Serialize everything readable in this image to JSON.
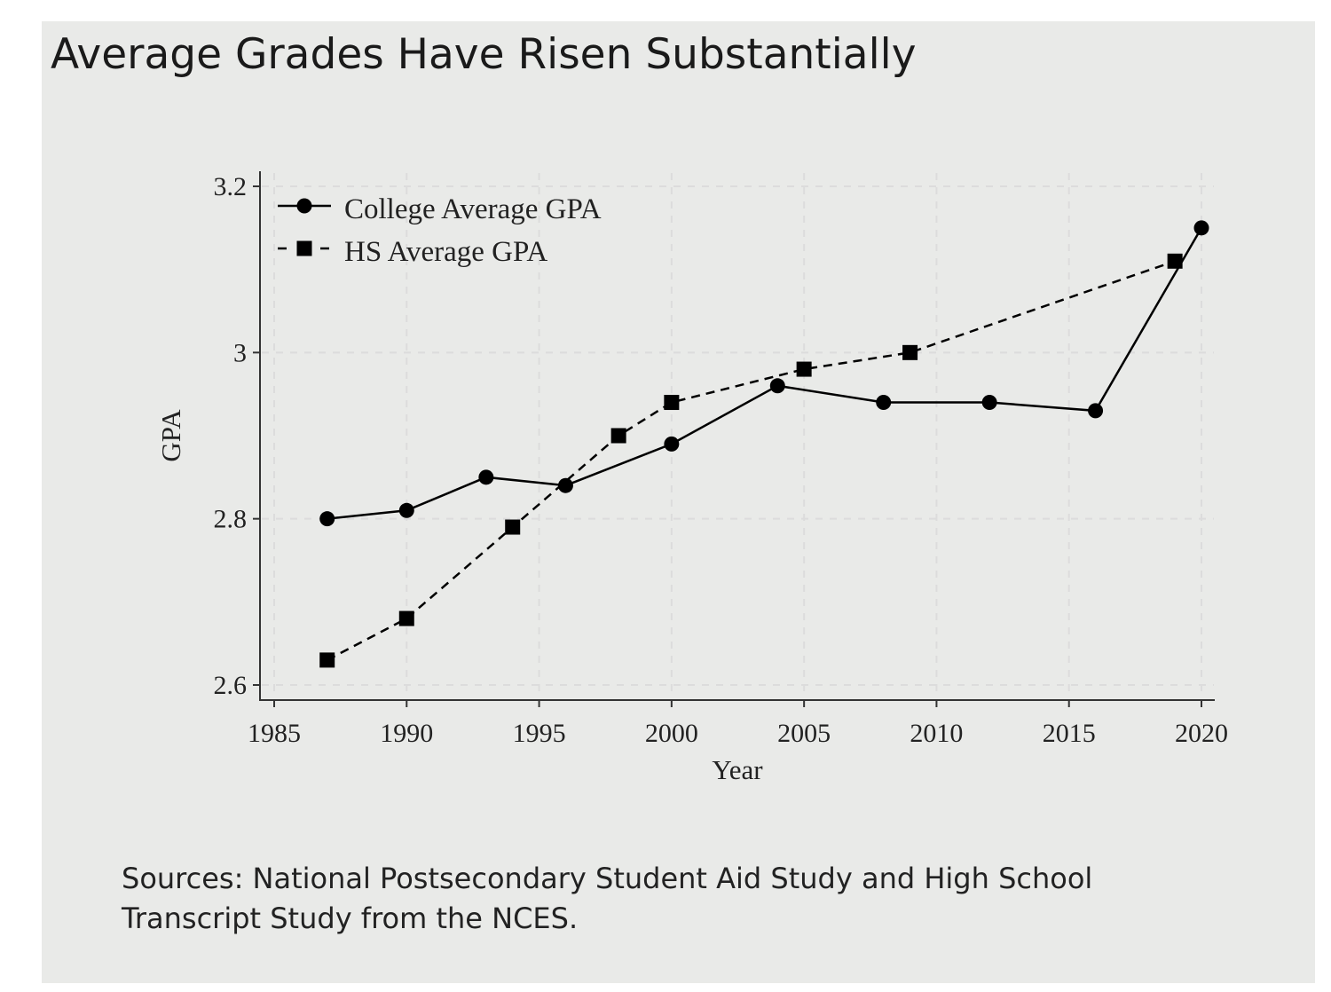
{
  "title": "Average Grades Have Risen Substantially",
  "source_note": "Sources: National Postsecondary Student Aid Study and High School Transcript Study from the NCES.",
  "chart_data": {
    "type": "line",
    "title": "Average Grades Have Risen Substantially",
    "xlabel": "Year",
    "ylabel": "GPA",
    "xlim": [
      1985,
      2020
    ],
    "ylim": [
      2.6,
      3.2
    ],
    "xticks": [
      "1985",
      "1990",
      "1995",
      "2000",
      "2005",
      "2010",
      "2015",
      "2020"
    ],
    "yticks": [
      "2.6",
      "2.8",
      "3",
      "3.2"
    ],
    "grid": true,
    "legend_position": "top-left",
    "series": [
      {
        "name": "College Average GPA",
        "style": "solid",
        "marker": "circle",
        "color": "#000000",
        "x": [
          1987,
          1990,
          1993,
          1996,
          2000,
          2004,
          2008,
          2012,
          2016,
          2020
        ],
        "y": [
          2.8,
          2.81,
          2.85,
          2.84,
          2.89,
          2.96,
          2.94,
          2.94,
          2.93,
          3.15
        ]
      },
      {
        "name": "HS Average GPA",
        "style": "dashed",
        "marker": "square",
        "color": "#000000",
        "x": [
          1987,
          1990,
          1994,
          1998,
          2000,
          2005,
          2009,
          2019
        ],
        "y": [
          2.63,
          2.68,
          2.79,
          2.9,
          2.94,
          2.98,
          3.0,
          3.11
        ]
      }
    ]
  }
}
